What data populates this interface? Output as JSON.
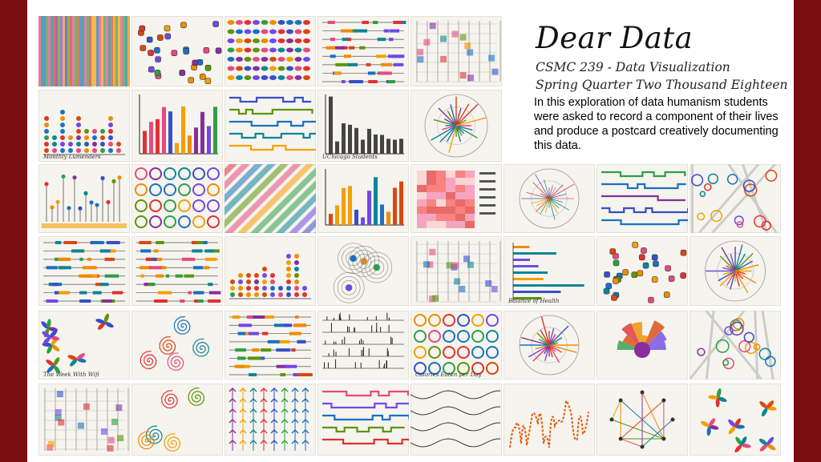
{
  "slide": {
    "title": "Dear Data",
    "course": "CSMC 239 - Data Visualization",
    "term": "Spring Quarter Two Thousand Eighteen",
    "description": "In this exploration of data humanism students were asked to record a component of their lives and produce a postcard creatively documenting this data."
  },
  "postcards": [
    {
      "kind": "stripes",
      "label": ""
    },
    {
      "kind": "icons",
      "label": ""
    },
    {
      "kind": "beads",
      "label": ""
    },
    {
      "kind": "lines",
      "label": ""
    },
    {
      "kind": "grid",
      "label": ""
    },
    {
      "kind": "dots",
      "label": "Monthly Lumenders"
    },
    {
      "kind": "bars",
      "label": ""
    },
    {
      "kind": "steps",
      "label": ""
    },
    {
      "kind": "chart",
      "label": "UChicago Students"
    },
    {
      "kind": "radial",
      "label": ""
    },
    {
      "kind": "lollipop",
      "label": ""
    },
    {
      "kind": "circles",
      "label": ""
    },
    {
      "kind": "diagonal",
      "label": ""
    },
    {
      "kind": "bars",
      "label": ""
    },
    {
      "kind": "heat",
      "label": ""
    },
    {
      "kind": "star",
      "label": ""
    },
    {
      "kind": "steps",
      "label": ""
    },
    {
      "kind": "map",
      "label": ""
    },
    {
      "kind": "lines",
      "label": ""
    },
    {
      "kind": "lines",
      "label": ""
    },
    {
      "kind": "dots",
      "label": ""
    },
    {
      "kind": "orbits",
      "label": ""
    },
    {
      "kind": "grid",
      "label": ""
    },
    {
      "kind": "hbars",
      "label": "Balance of Health"
    },
    {
      "kind": "icons",
      "label": ""
    },
    {
      "kind": "radial",
      "label": ""
    },
    {
      "kind": "flowers",
      "label": "The Week With Wifi"
    },
    {
      "kind": "spiral",
      "label": ""
    },
    {
      "kind": "lines",
      "label": ""
    },
    {
      "kind": "spikes",
      "label": ""
    },
    {
      "kind": "circles",
      "label": "Calories Eaten per Day"
    },
    {
      "kind": "radial",
      "label": ""
    },
    {
      "kind": "fan",
      "label": ""
    },
    {
      "kind": "map",
      "label": ""
    },
    {
      "kind": "grid",
      "label": ""
    },
    {
      "kind": "spiral",
      "label": ""
    },
    {
      "kind": "arrows",
      "label": ""
    },
    {
      "kind": "steps",
      "label": ""
    },
    {
      "kind": "waves",
      "label": ""
    },
    {
      "kind": "squiggle",
      "label": ""
    },
    {
      "kind": "network",
      "label": ""
    },
    {
      "kind": "flowers",
      "label": ""
    }
  ]
}
